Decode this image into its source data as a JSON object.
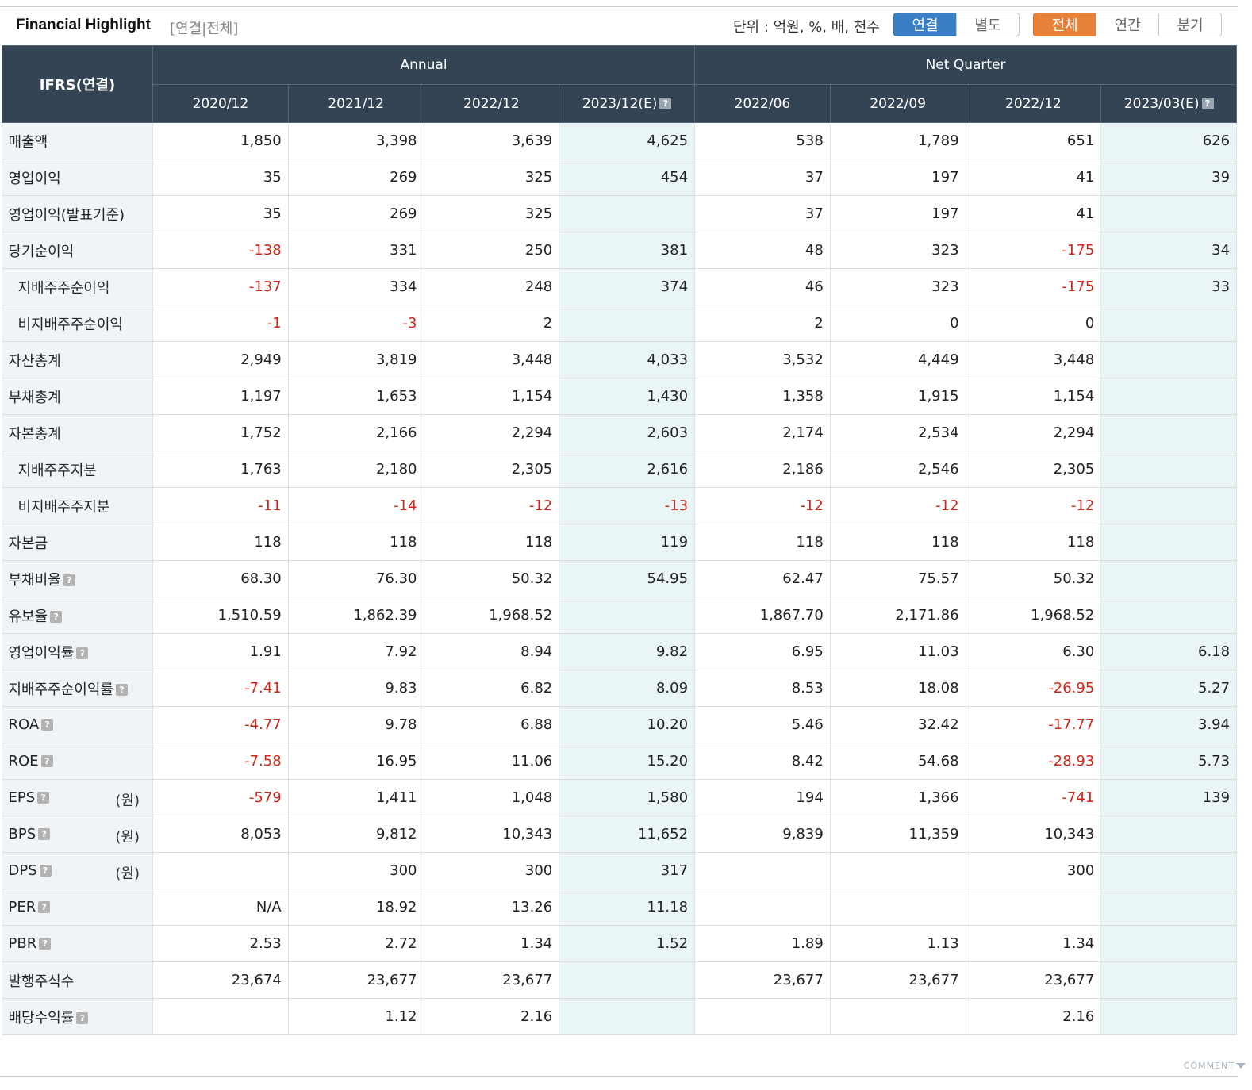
{
  "header": {
    "title": "Financial Highlight",
    "subtitle": "[연결|전체]",
    "unit_label": "단위 : 억원, %, 배, 천주",
    "scope_buttons": [
      {
        "label": "연결",
        "active": true
      },
      {
        "label": "별도",
        "active": false
      }
    ],
    "period_buttons": [
      {
        "label": "전체",
        "active": true
      },
      {
        "label": "연간",
        "active": false
      },
      {
        "label": "분기",
        "active": false
      }
    ]
  },
  "table": {
    "corner_label": "IFRS(연결)",
    "groups": [
      "Annual",
      "Net Quarter"
    ],
    "columns": [
      "2020/12",
      "2021/12",
      "2022/12",
      "2023/12(E)",
      "2022/06",
      "2022/09",
      "2022/12",
      "2023/03(E)"
    ],
    "rows": [
      {
        "label": "매출액",
        "indent": false,
        "help": false,
        "unit": "",
        "values": [
          "1,850",
          "3,398",
          "3,639",
          "4,625",
          "538",
          "1,789",
          "651",
          "626"
        ]
      },
      {
        "label": "영업이익",
        "indent": false,
        "help": false,
        "unit": "",
        "values": [
          "35",
          "269",
          "325",
          "454",
          "37",
          "197",
          "41",
          "39"
        ]
      },
      {
        "label": "영업이익(발표기준)",
        "indent": false,
        "help": false,
        "unit": "",
        "values": [
          "35",
          "269",
          "325",
          "",
          "37",
          "197",
          "41",
          ""
        ]
      },
      {
        "label": "당기순이익",
        "indent": false,
        "help": false,
        "unit": "",
        "values": [
          "-138",
          "331",
          "250",
          "381",
          "48",
          "323",
          "-175",
          "34"
        ]
      },
      {
        "label": "지배주주순이익",
        "indent": true,
        "help": false,
        "unit": "",
        "values": [
          "-137",
          "334",
          "248",
          "374",
          "46",
          "323",
          "-175",
          "33"
        ]
      },
      {
        "label": "비지배주주순이익",
        "indent": true,
        "help": false,
        "unit": "",
        "values": [
          "-1",
          "-3",
          "2",
          "",
          "2",
          "0",
          "0",
          ""
        ]
      },
      {
        "label": "자산총계",
        "indent": false,
        "help": false,
        "unit": "",
        "values": [
          "2,949",
          "3,819",
          "3,448",
          "4,033",
          "3,532",
          "4,449",
          "3,448",
          ""
        ]
      },
      {
        "label": "부채총계",
        "indent": false,
        "help": false,
        "unit": "",
        "values": [
          "1,197",
          "1,653",
          "1,154",
          "1,430",
          "1,358",
          "1,915",
          "1,154",
          ""
        ]
      },
      {
        "label": "자본총계",
        "indent": false,
        "help": false,
        "unit": "",
        "values": [
          "1,752",
          "2,166",
          "2,294",
          "2,603",
          "2,174",
          "2,534",
          "2,294",
          ""
        ]
      },
      {
        "label": "지배주주지분",
        "indent": true,
        "help": false,
        "unit": "",
        "values": [
          "1,763",
          "2,180",
          "2,305",
          "2,616",
          "2,186",
          "2,546",
          "2,305",
          ""
        ]
      },
      {
        "label": "비지배주주지분",
        "indent": true,
        "help": false,
        "unit": "",
        "values": [
          "-11",
          "-14",
          "-12",
          "-13",
          "-12",
          "-12",
          "-12",
          ""
        ]
      },
      {
        "label": "자본금",
        "indent": false,
        "help": false,
        "unit": "",
        "values": [
          "118",
          "118",
          "118",
          "119",
          "118",
          "118",
          "118",
          ""
        ]
      },
      {
        "label": "부채비율",
        "indent": false,
        "help": true,
        "unit": "",
        "values": [
          "68.30",
          "76.30",
          "50.32",
          "54.95",
          "62.47",
          "75.57",
          "50.32",
          ""
        ]
      },
      {
        "label": "유보율",
        "indent": false,
        "help": true,
        "unit": "",
        "values": [
          "1,510.59",
          "1,862.39",
          "1,968.52",
          "",
          "1,867.70",
          "2,171.86",
          "1,968.52",
          ""
        ]
      },
      {
        "label": "영업이익률",
        "indent": false,
        "help": true,
        "unit": "",
        "values": [
          "1.91",
          "7.92",
          "8.94",
          "9.82",
          "6.95",
          "11.03",
          "6.30",
          "6.18"
        ]
      },
      {
        "label": "지배주주순이익률",
        "indent": false,
        "help": true,
        "unit": "",
        "values": [
          "-7.41",
          "9.83",
          "6.82",
          "8.09",
          "8.53",
          "18.08",
          "-26.95",
          "5.27"
        ]
      },
      {
        "label": "ROA",
        "indent": false,
        "help": true,
        "unit": "",
        "values": [
          "-4.77",
          "9.78",
          "6.88",
          "10.20",
          "5.46",
          "32.42",
          "-17.77",
          "3.94"
        ]
      },
      {
        "label": "ROE",
        "indent": false,
        "help": true,
        "unit": "",
        "values": [
          "-7.58",
          "16.95",
          "11.06",
          "15.20",
          "8.42",
          "54.68",
          "-28.93",
          "5.73"
        ]
      },
      {
        "label": "EPS",
        "indent": false,
        "help": true,
        "unit": "(원)",
        "values": [
          "-579",
          "1,411",
          "1,048",
          "1,580",
          "194",
          "1,366",
          "-741",
          "139"
        ]
      },
      {
        "label": "BPS",
        "indent": false,
        "help": true,
        "unit": "(원)",
        "values": [
          "8,053",
          "9,812",
          "10,343",
          "11,652",
          "9,839",
          "11,359",
          "10,343",
          ""
        ]
      },
      {
        "label": "DPS",
        "indent": false,
        "help": true,
        "unit": "(원)",
        "values": [
          "",
          "300",
          "300",
          "317",
          "",
          "",
          "300",
          ""
        ]
      },
      {
        "label": "PER",
        "indent": false,
        "help": true,
        "unit": "",
        "values": [
          "N/A",
          "18.92",
          "13.26",
          "11.18",
          "",
          "",
          "",
          ""
        ]
      },
      {
        "label": "PBR",
        "indent": false,
        "help": true,
        "unit": "",
        "values": [
          "2.53",
          "2.72",
          "1.34",
          "1.52",
          "1.89",
          "1.13",
          "1.34",
          ""
        ]
      },
      {
        "label": "발행주식수",
        "indent": false,
        "help": false,
        "unit": "",
        "values": [
          "23,674",
          "23,677",
          "23,677",
          "",
          "23,677",
          "23,677",
          "23,677",
          ""
        ]
      },
      {
        "label": "배당수익률",
        "indent": false,
        "help": true,
        "unit": "",
        "values": [
          "",
          "1.12",
          "2.16",
          "",
          "",
          "",
          "2.16",
          ""
        ]
      }
    ]
  },
  "footer": {
    "comment_label": "COMMENT"
  },
  "icons": {
    "help": "help-icon",
    "comment_toggle": "chevron-down-icon"
  },
  "colors": {
    "header_bg": "#344454",
    "negative": "#d0261a",
    "estimate_bg": "#eaf5f8",
    "blue_btn": "#3a7fc6",
    "orange_btn": "#e8813a"
  }
}
